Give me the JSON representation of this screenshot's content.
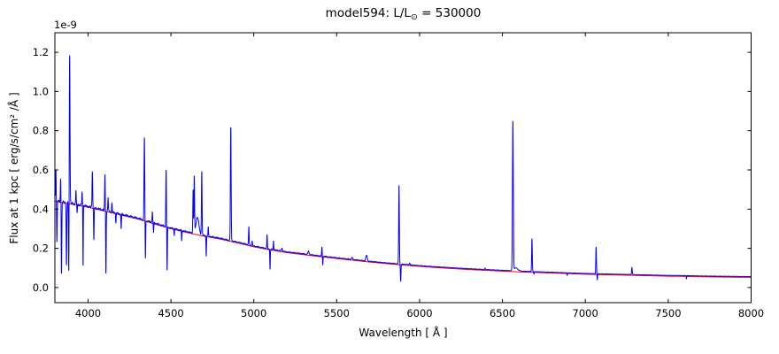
{
  "chart_data": {
    "type": "line",
    "title": "model594: L/L⊙ = 530000",
    "title_pre": "model594: L/L",
    "title_sub": "⊙",
    "title_post": " = 530000",
    "xlabel": "Wavelength [ Å ]",
    "ylabel": "Flux at 1 kpc [ erg/s/cm² /Å ]",
    "y_offset_text": "1e-9",
    "unit_scale": "1e-9",
    "xlim": [
      3800,
      8000
    ],
    "ylim": [
      -0.077,
      1.3
    ],
    "xticks": [
      4000,
      4500,
      5000,
      5500,
      6000,
      6500,
      7000,
      7500,
      8000
    ],
    "yticks": [
      0.0,
      0.2,
      0.4,
      0.6,
      0.8,
      1.0,
      1.2
    ],
    "grid": false,
    "legend": false,
    "axis_color": "#000000",
    "series": [
      {
        "name": "continuum",
        "color": "#ff0000",
        "x": [
          3800,
          3900,
          4000,
          4100,
          4200,
          4300,
          4400,
          4500,
          4600,
          4700,
          4800,
          4900,
          5000,
          5100,
          5200,
          5300,
          5400,
          5500,
          5600,
          5700,
          5800,
          5900,
          6000,
          6100,
          6200,
          6300,
          6400,
          6500,
          6600,
          6700,
          6800,
          6900,
          7000,
          7100,
          7200,
          7300,
          7400,
          7500,
          7600,
          7700,
          7800,
          7900,
          8000
        ],
        "y": [
          0.44,
          0.425,
          0.41,
          0.39,
          0.37,
          0.35,
          0.325,
          0.3,
          0.28,
          0.262,
          0.247,
          0.228,
          0.208,
          0.192,
          0.178,
          0.168,
          0.158,
          0.148,
          0.139,
          0.13,
          0.122,
          0.115,
          0.108,
          0.102,
          0.097,
          0.092,
          0.088,
          0.084,
          0.08,
          0.077,
          0.074,
          0.071,
          0.068,
          0.066,
          0.064,
          0.062,
          0.06,
          0.058,
          0.057,
          0.055,
          0.054,
          0.053,
          0.052
        ]
      },
      {
        "name": "spectrum",
        "color": "#0000ff",
        "model": "continuum plus gaussian emission/absorption features",
        "feature_format": [
          "wavelength_A",
          "peak_or_dip_value_1e-9",
          "half_width_A"
        ],
        "features": [
          [
            3800,
            0.49,
            2.0
          ],
          [
            3806,
            0.6,
            2.5
          ],
          [
            3812,
            0.24,
            2.5
          ],
          [
            3835,
            0.56,
            2.5
          ],
          [
            3840,
            0.06,
            2.5
          ],
          [
            3870,
            0.1,
            2.5
          ],
          [
            3884,
            0.05,
            2.5
          ],
          [
            3889,
            1.21,
            3.0
          ],
          [
            3927,
            0.5,
            2.2
          ],
          [
            3934,
            0.38,
            2.0
          ],
          [
            3964,
            0.49,
            2.2
          ],
          [
            3970,
            0.11,
            1.8
          ],
          [
            4026,
            0.6,
            2.5
          ],
          [
            4035,
            0.24,
            2.2
          ],
          [
            4102,
            0.58,
            2.5
          ],
          [
            4108,
            0.06,
            2.2
          ],
          [
            4121,
            0.46,
            2.2
          ],
          [
            4144,
            0.43,
            2.2
          ],
          [
            4168,
            0.33,
            2.0
          ],
          [
            4200,
            0.3,
            2.2
          ],
          [
            4340,
            0.76,
            3.0
          ],
          [
            4346,
            0.14,
            2.2
          ],
          [
            4388,
            0.39,
            2.2
          ],
          [
            4395,
            0.28,
            2.0
          ],
          [
            4471,
            0.6,
            2.5
          ],
          [
            4477,
            0.08,
            2.2
          ],
          [
            4520,
            0.27,
            2.0
          ],
          [
            4565,
            0.24,
            2.0
          ],
          [
            4634,
            0.5,
            2.5
          ],
          [
            4641,
            0.57,
            2.5
          ],
          [
            4660,
            0.36,
            12.0
          ],
          [
            4686,
            0.6,
            2.6
          ],
          [
            4713,
            0.16,
            2.0
          ],
          [
            4725,
            0.31,
            2.0
          ],
          [
            4861,
            0.835,
            3.0
          ],
          [
            4970,
            0.31,
            2.4
          ],
          [
            4990,
            0.24,
            2.0
          ],
          [
            5080,
            0.27,
            2.2
          ],
          [
            5098,
            0.09,
            2.0
          ],
          [
            5119,
            0.24,
            2.0
          ],
          [
            5170,
            0.2,
            4.0
          ],
          [
            5330,
            0.185,
            5.0
          ],
          [
            5411,
            0.205,
            2.4
          ],
          [
            5416,
            0.115,
            2.0
          ],
          [
            5592,
            0.155,
            4.0
          ],
          [
            5680,
            0.165,
            6.0
          ],
          [
            5876,
            0.52,
            2.8
          ],
          [
            5886,
            0.03,
            2.4
          ],
          [
            5940,
            0.125,
            3.0
          ],
          [
            6395,
            0.1,
            2.0
          ],
          [
            6563,
            0.843,
            3.5
          ],
          [
            6580,
            0.1,
            18.0
          ],
          [
            6678,
            0.256,
            2.6
          ],
          [
            6690,
            0.068,
            2.0
          ],
          [
            6890,
            0.062,
            1.5
          ],
          [
            7065,
            0.21,
            2.6
          ],
          [
            7072,
            0.038,
            2.0
          ],
          [
            7281,
            0.105,
            2.5
          ],
          [
            7610,
            0.045,
            1.5
          ]
        ]
      }
    ]
  }
}
